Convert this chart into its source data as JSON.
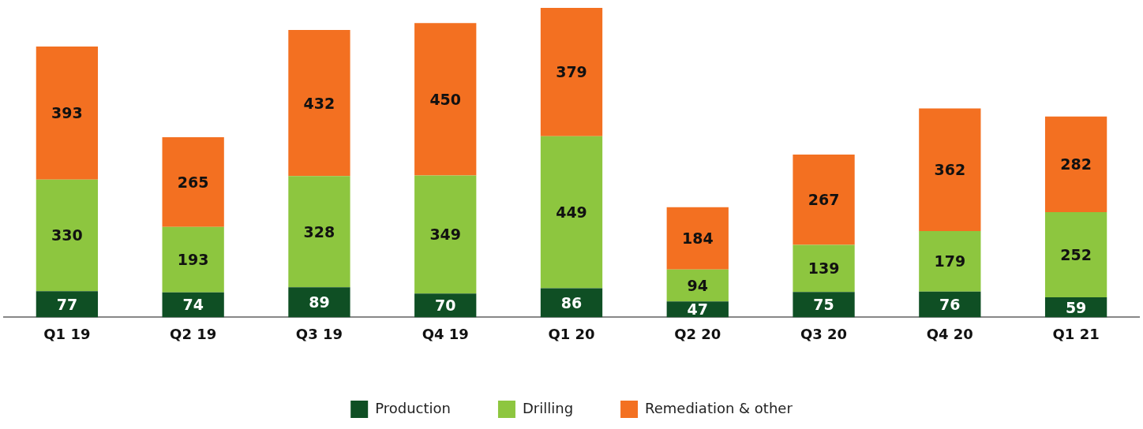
{
  "chart_data": {
    "type": "bar",
    "stacked": true,
    "data_labels": true,
    "legend": "bottom",
    "categories": [
      "Q1 19",
      "Q2 19",
      "Q3 19",
      "Q4 19",
      "Q1 20",
      "Q2 20",
      "Q3 20",
      "Q4 20",
      "Q1 21"
    ],
    "series": [
      {
        "name": "Production",
        "color": "#0f4f24",
        "values": [
          77,
          74,
          89,
          70,
          86,
          47,
          75,
          76,
          59
        ]
      },
      {
        "name": "Drilling",
        "color": "#8dc63f",
        "values": [
          330,
          193,
          328,
          349,
          449,
          94,
          139,
          179,
          252
        ]
      },
      {
        "name": "Remediation & other",
        "color": "#f37021",
        "values": [
          393,
          265,
          432,
          450,
          379,
          184,
          267,
          362,
          282
        ]
      }
    ]
  }
}
